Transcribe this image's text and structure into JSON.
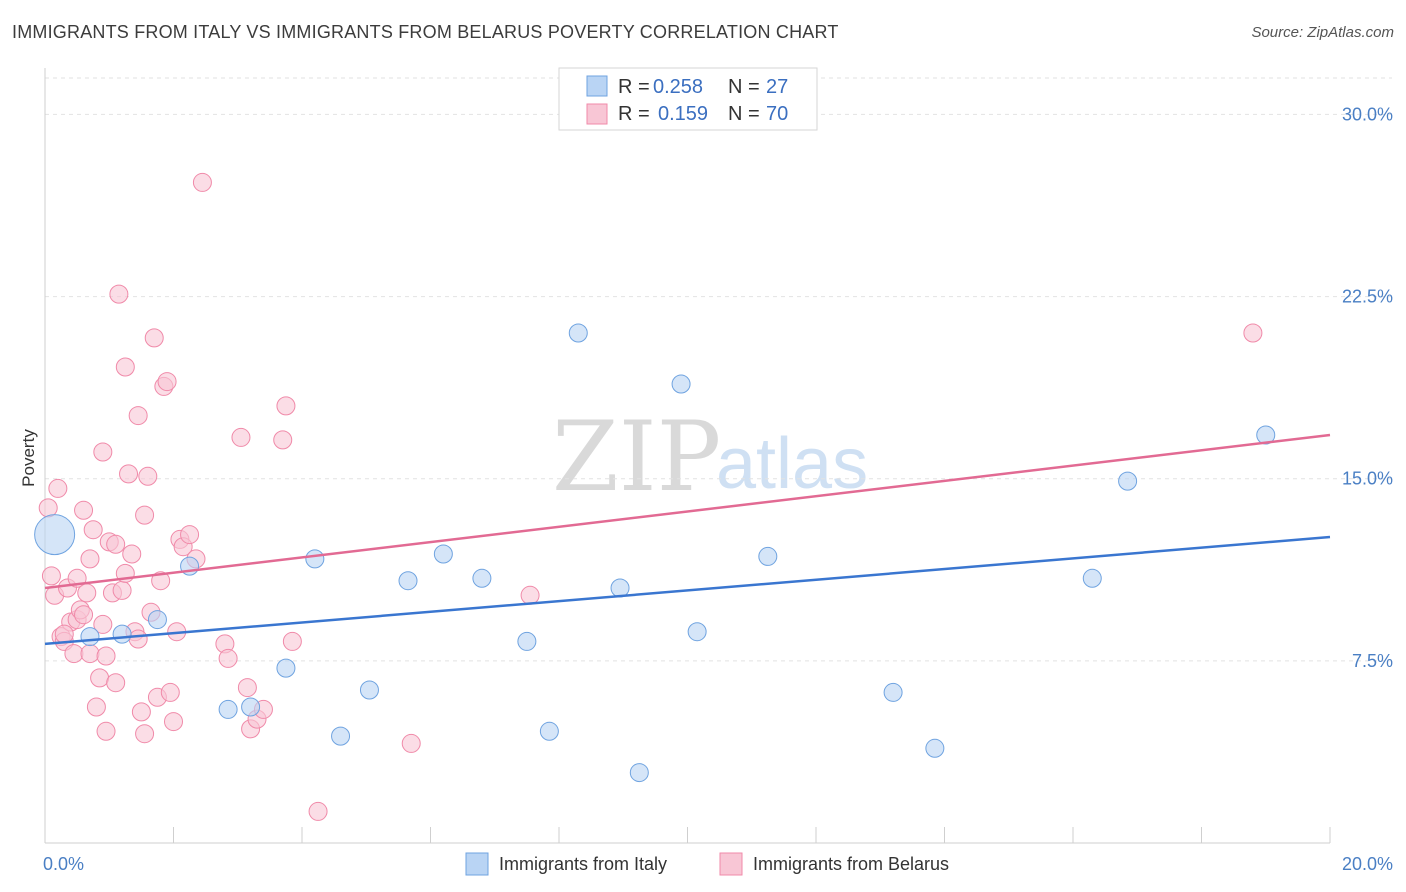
{
  "title": "IMMIGRANTS FROM ITALY VS IMMIGRANTS FROM BELARUS POVERTY CORRELATION CHART",
  "source": "Source: ZipAtlas.com",
  "watermark": {
    "zip": "ZIP",
    "atlas": "atlas"
  },
  "colors": {
    "italy": "#6fa3e0",
    "italy_fill": "#b9d4f4",
    "italy_line": "#3a76d0",
    "belarus": "#f08aa9",
    "belarus_fill": "#f8c6d5",
    "belarus_line": "#e26a93",
    "axis_label": "#4a7fc4",
    "grid": "#e2e2e2"
  },
  "legend": {
    "rows": [
      {
        "r_label": "R =",
        "r_value": "0.258",
        "n_label": "N =",
        "n_value": "27"
      },
      {
        "r_label": "R =",
        "r_value": "0.159",
        "n_label": "N =",
        "n_value": "70"
      }
    ]
  },
  "bottom_legend": [
    "Immigrants from Italy",
    "Immigrants from Belarus"
  ],
  "chart_data": {
    "type": "scatter",
    "title": "IMMIGRANTS FROM ITALY VS IMMIGRANTS FROM BELARUS POVERTY CORRELATION CHART",
    "xlabel": "",
    "ylabel": "Poverty",
    "xlim": [
      0,
      20
    ],
    "ylim": [
      0,
      31.5
    ],
    "x_tick_labels": [
      "0.0%",
      "20.0%"
    ],
    "y_ticks": [
      7.5,
      15.0,
      22.5,
      30.0
    ],
    "y_tick_labels": [
      "7.5%",
      "15.0%",
      "22.5%",
      "30.0%"
    ],
    "x_minor_ticks": [
      0,
      2,
      4,
      6,
      8,
      10,
      12,
      14,
      16,
      18,
      20
    ],
    "series": [
      {
        "name": "Immigrants from Italy",
        "r": 0.258,
        "n": 27,
        "trend": {
          "x0": 0,
          "y0": 8.2,
          "x1": 20,
          "y1": 12.6
        },
        "points": [
          {
            "x": 0.15,
            "y": 12.7,
            "big": true
          },
          {
            "x": 0.7,
            "y": 8.5
          },
          {
            "x": 1.2,
            "y": 8.6
          },
          {
            "x": 1.75,
            "y": 9.2
          },
          {
            "x": 2.25,
            "y": 11.4
          },
          {
            "x": 2.85,
            "y": 5.5
          },
          {
            "x": 3.2,
            "y": 5.6
          },
          {
            "x": 3.75,
            "y": 7.2
          },
          {
            "x": 4.2,
            "y": 11.7
          },
          {
            "x": 4.6,
            "y": 4.4
          },
          {
            "x": 5.05,
            "y": 6.3
          },
          {
            "x": 5.65,
            "y": 10.8
          },
          {
            "x": 6.2,
            "y": 11.9
          },
          {
            "x": 6.8,
            "y": 10.9
          },
          {
            "x": 7.5,
            "y": 8.3
          },
          {
            "x": 7.85,
            "y": 4.6
          },
          {
            "x": 8.3,
            "y": 21.0
          },
          {
            "x": 8.95,
            "y": 10.5
          },
          {
            "x": 9.25,
            "y": 2.9
          },
          {
            "x": 9.9,
            "y": 18.9
          },
          {
            "x": 10.15,
            "y": 8.7
          },
          {
            "x": 11.25,
            "y": 11.8
          },
          {
            "x": 13.2,
            "y": 6.2
          },
          {
            "x": 13.85,
            "y": 3.9
          },
          {
            "x": 16.3,
            "y": 10.9
          },
          {
            "x": 16.85,
            "y": 14.9
          },
          {
            "x": 19.0,
            "y": 16.8
          }
        ]
      },
      {
        "name": "Immigrants from Belarus",
        "r": 0.159,
        "n": 70,
        "trend": {
          "x0": 0,
          "y0": 10.5,
          "x1": 20,
          "y1": 16.8
        },
        "points": [
          {
            "x": 0.05,
            "y": 13.8
          },
          {
            "x": 0.1,
            "y": 11.0
          },
          {
            "x": 0.15,
            "y": 10.2
          },
          {
            "x": 0.2,
            "y": 14.6
          },
          {
            "x": 0.25,
            "y": 8.5
          },
          {
            "x": 0.3,
            "y": 8.3
          },
          {
            "x": 0.35,
            "y": 10.5
          },
          {
            "x": 0.4,
            "y": 9.1
          },
          {
            "x": 0.45,
            "y": 7.8
          },
          {
            "x": 0.5,
            "y": 9.2
          },
          {
            "x": 0.5,
            "y": 10.9
          },
          {
            "x": 0.55,
            "y": 9.6
          },
          {
            "x": 0.6,
            "y": 9.4
          },
          {
            "x": 0.6,
            "y": 13.7
          },
          {
            "x": 0.65,
            "y": 10.3
          },
          {
            "x": 0.7,
            "y": 7.8
          },
          {
            "x": 0.7,
            "y": 11.7
          },
          {
            "x": 0.75,
            "y": 12.9
          },
          {
            "x": 0.8,
            "y": 5.6
          },
          {
            "x": 0.85,
            "y": 6.8
          },
          {
            "x": 0.9,
            "y": 9.0
          },
          {
            "x": 0.9,
            "y": 16.1
          },
          {
            "x": 0.95,
            "y": 7.7
          },
          {
            "x": 0.95,
            "y": 4.6
          },
          {
            "x": 1.0,
            "y": 12.4
          },
          {
            "x": 1.05,
            "y": 10.3
          },
          {
            "x": 1.1,
            "y": 12.3
          },
          {
            "x": 1.1,
            "y": 6.6
          },
          {
            "x": 1.15,
            "y": 22.6
          },
          {
            "x": 1.2,
            "y": 10.4
          },
          {
            "x": 1.25,
            "y": 11.1
          },
          {
            "x": 1.25,
            "y": 19.6
          },
          {
            "x": 1.3,
            "y": 15.2
          },
          {
            "x": 1.35,
            "y": 11.9
          },
          {
            "x": 1.4,
            "y": 8.7
          },
          {
            "x": 1.45,
            "y": 8.4
          },
          {
            "x": 1.45,
            "y": 17.6
          },
          {
            "x": 1.5,
            "y": 5.4
          },
          {
            "x": 1.55,
            "y": 4.5
          },
          {
            "x": 1.55,
            "y": 13.5
          },
          {
            "x": 1.6,
            "y": 15.1
          },
          {
            "x": 1.65,
            "y": 9.5
          },
          {
            "x": 1.7,
            "y": 20.8
          },
          {
            "x": 1.75,
            "y": 6.0
          },
          {
            "x": 1.8,
            "y": 10.8
          },
          {
            "x": 1.85,
            "y": 18.8
          },
          {
            "x": 1.9,
            "y": 19.0
          },
          {
            "x": 1.95,
            "y": 6.2
          },
          {
            "x": 2.0,
            "y": 5.0
          },
          {
            "x": 2.05,
            "y": 8.7
          },
          {
            "x": 2.1,
            "y": 12.5
          },
          {
            "x": 2.15,
            "y": 12.2
          },
          {
            "x": 2.25,
            "y": 12.7
          },
          {
            "x": 2.35,
            "y": 11.7
          },
          {
            "x": 2.45,
            "y": 27.2
          },
          {
            "x": 2.8,
            "y": 8.2
          },
          {
            "x": 2.85,
            "y": 7.6
          },
          {
            "x": 3.05,
            "y": 16.7
          },
          {
            "x": 3.2,
            "y": 4.7
          },
          {
            "x": 3.3,
            "y": 5.1
          },
          {
            "x": 3.4,
            "y": 5.5
          },
          {
            "x": 3.7,
            "y": 16.6
          },
          {
            "x": 3.75,
            "y": 18.0
          },
          {
            "x": 3.85,
            "y": 8.3
          },
          {
            "x": 4.25,
            "y": 1.3
          },
          {
            "x": 5.7,
            "y": 4.1
          },
          {
            "x": 7.55,
            "y": 10.2
          },
          {
            "x": 18.8,
            "y": 21.0
          },
          {
            "x": 3.15,
            "y": 6.4
          },
          {
            "x": 0.3,
            "y": 8.6
          }
        ]
      }
    ]
  }
}
